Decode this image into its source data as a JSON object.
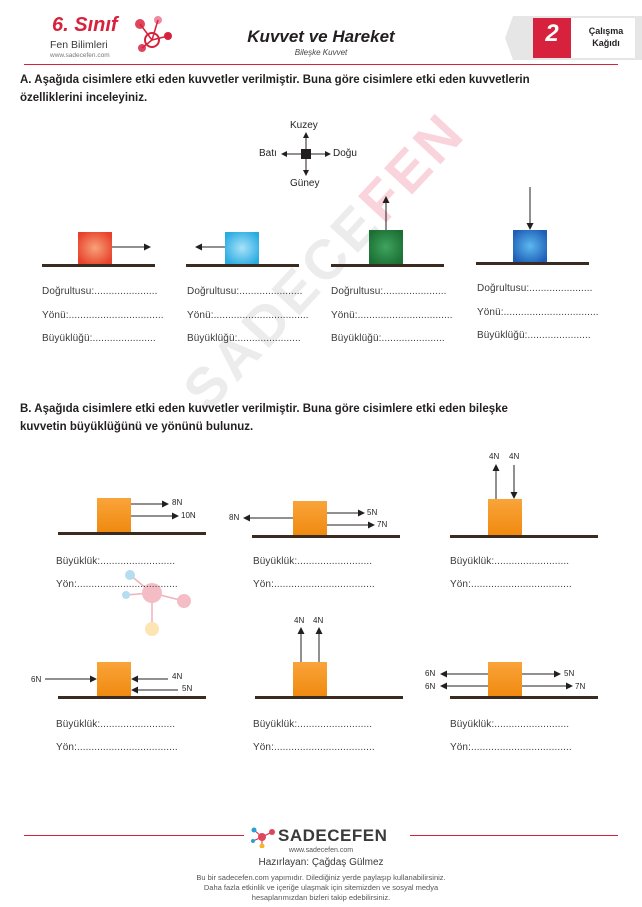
{
  "header": {
    "brand_grade": "6. Sınıf",
    "brand_subject": "Fen Bilimleri",
    "brand_url": "www.sadecefen.com",
    "title": "Kuvvet ve Hareket",
    "subtitle": "Bileşke Kuvvet",
    "sheet_number": "2",
    "sheet_label_line1": "Çalışma",
    "sheet_label_line2": "Kağıdı"
  },
  "section_a": {
    "prompt_line1": "A. Aşağıda cisimlere etki eden kuvvetler verilmiştir. Buna göre cisimlere etki eden kuvvetlerin",
    "prompt_line2": "özelliklerini inceleyiniz.",
    "compass": {
      "north": "Kuzey",
      "south": "Güney",
      "east": "Doğu",
      "west": "Batı"
    },
    "items": [
      {
        "color": "#e8402a",
        "direction": "right",
        "line1": "Doğrultusu:......................",
        "line2": "Yönü:.................................",
        "line3": "Büyüklüğü:......................"
      },
      {
        "color": "#29abe2",
        "direction": "left",
        "line1": "Doğrultusu:......................",
        "line2": "Yönü:.................................",
        "line3": "Büyüklüğü:......................"
      },
      {
        "color": "#1b7f3a",
        "direction": "up",
        "line1": "Doğrultusu:......................",
        "line2": "Yönü:.................................",
        "line3": "Büyüklüğü:......................"
      },
      {
        "color": "#1f6fc7",
        "direction": "down",
        "line1": "Doğrultusu:......................",
        "line2": "Yönü:.................................",
        "line3": "Büyüklüğü:......................"
      }
    ]
  },
  "section_b": {
    "prompt_line1": "B. Aşağıda cisimlere etki eden kuvvetler verilmiştir. Buna göre cisimlere etki eden bileşke",
    "prompt_line2": "kuvvetin büyüklüğünü ve yönünü bulunuz.",
    "box_color": "#f7941d",
    "answer_magnitude": "Büyüklük:..........................",
    "answer_direction": "Yön:...................................",
    "forces": {
      "p1": [
        "8N",
        "10N"
      ],
      "p2": [
        "8N",
        "5N",
        "7N"
      ],
      "p3": [
        "4N",
        "4N"
      ],
      "p4": [
        "6N",
        "4N",
        "5N"
      ],
      "p5": [
        "4N",
        "4N"
      ],
      "p6": [
        "6N",
        "6N",
        "5N",
        "7N"
      ]
    }
  },
  "footer": {
    "brand": "SADECEFEN",
    "brand_url": "www.sadecefen.com",
    "author": "Hazırlayan: Çağdaş Gülmez",
    "note_line1": "Bu bir sadecefen.com yapımıdır. Dilediğiniz yerde paylaşıp kullanabilirsiniz.",
    "note_line2": "Daha fazla etkinlik ve içeriğe ulaşmak için sitemizden ve sosyal medya",
    "note_line3": "hesaplarımızdan bizleri takip edebilirsiniz."
  },
  "watermark": {
    "part1": "SADECE",
    "part2": "FEN"
  },
  "colors": {
    "accent": "#d6223c",
    "ground": "#3b2a20",
    "line": "#231f20"
  }
}
